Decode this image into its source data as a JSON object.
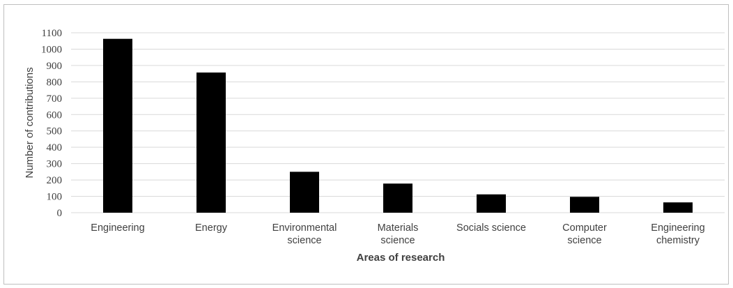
{
  "chart_data": {
    "type": "bar",
    "title": "",
    "xlabel": "Areas of research",
    "ylabel": "Number of contributions",
    "categories": [
      [
        "Engineering"
      ],
      [
        "Energy"
      ],
      [
        "Environmental",
        "science"
      ],
      [
        "Materials",
        "science"
      ],
      [
        "Socials science"
      ],
      [
        "Computer",
        "science"
      ],
      [
        "Engineering",
        "chemistry"
      ]
    ],
    "values": [
      1063,
      857,
      250,
      178,
      112,
      97,
      63
    ],
    "ylim": [
      0,
      1100
    ],
    "yticks": [
      0,
      100,
      200,
      300,
      400,
      500,
      600,
      700,
      800,
      900,
      1000,
      1100
    ],
    "grid": true,
    "legend": "none",
    "colors": {
      "bar": "#000000",
      "grid": "#d9d9d9",
      "text": "#404040"
    }
  }
}
